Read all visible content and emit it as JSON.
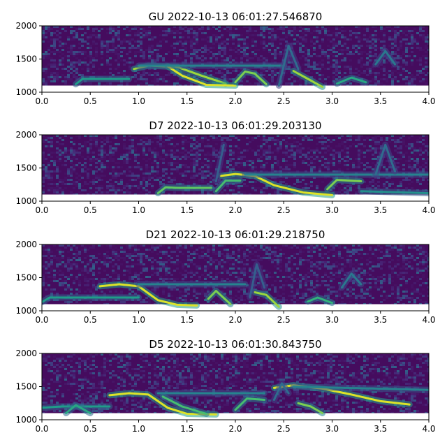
{
  "chart_data": [
    {
      "type": "heatmap",
      "title": "GU 2022-10-13 06:01:27.546870",
      "xlim": [
        0.0,
        4.0
      ],
      "ylim": [
        1000,
        2000
      ],
      "xticks": [
        "0.0",
        "0.5",
        "1.0",
        "1.5",
        "2.0",
        "2.5",
        "3.0",
        "3.5",
        "4.0"
      ],
      "yticks": [
        "1000",
        "1500",
        "2000"
      ],
      "colormap": "viridis",
      "tracks": [
        {
          "x": [
            0.35,
            0.42,
            0.55,
            0.9
          ],
          "y": [
            1120,
            1200,
            1200,
            1200
          ],
          "intensity": 0.55
        },
        {
          "x": [
            0.95,
            1.1,
            1.4,
            1.65,
            1.9
          ],
          "y": [
            1350,
            1400,
            1380,
            1250,
            1130
          ],
          "intensity": 0.85
        },
        {
          "x": [
            1.3,
            1.45,
            1.7,
            2.0
          ],
          "y": [
            1390,
            1250,
            1110,
            1100
          ],
          "intensity": 0.95
        },
        {
          "x": [
            1.0,
            2.5
          ],
          "y": [
            1400,
            1400
          ],
          "intensity": 0.45
        },
        {
          "x": [
            2.0,
            2.1,
            2.2,
            2.32
          ],
          "y": [
            1150,
            1310,
            1280,
            1120
          ],
          "intensity": 0.8
        },
        {
          "x": [
            2.6,
            2.75,
            2.9
          ],
          "y": [
            1320,
            1200,
            1080
          ],
          "intensity": 0.85
        },
        {
          "x": [
            3.05,
            3.2,
            3.35
          ],
          "y": [
            1130,
            1220,
            1150
          ],
          "intensity": 0.6
        },
        {
          "x": [
            3.45,
            3.55,
            3.65
          ],
          "y": [
            1420,
            1620,
            1420
          ],
          "intensity": 0.4
        },
        {
          "x": [
            2.45,
            2.55,
            2.65
          ],
          "y": [
            1100,
            1700,
            1350
          ],
          "intensity": 0.35
        }
      ]
    },
    {
      "type": "heatmap",
      "title": "D7 2022-10-13 06:01:29.203130",
      "xlim": [
        0.0,
        4.0
      ],
      "ylim": [
        1000,
        2000
      ],
      "xticks": [
        "0.0",
        "0.5",
        "1.0",
        "1.5",
        "2.0",
        "2.5",
        "3.0",
        "3.5",
        "4.0"
      ],
      "yticks": [
        "1000",
        "1500",
        "2000"
      ],
      "colormap": "viridis",
      "tracks": [
        {
          "x": [
            1.2,
            1.28,
            1.4,
            1.75
          ],
          "y": [
            1120,
            1210,
            1200,
            1200
          ],
          "intensity": 0.75
        },
        {
          "x": [
            1.8,
            1.9,
            2.05
          ],
          "y": [
            1150,
            1310,
            1310
          ],
          "intensity": 0.7
        },
        {
          "x": [
            1.85,
            2.0,
            2.2,
            2.4,
            2.7,
            3.0
          ],
          "y": [
            1380,
            1410,
            1380,
            1240,
            1130,
            1090
          ],
          "intensity": 0.95
        },
        {
          "x": [
            2.1,
            4.0
          ],
          "y": [
            1400,
            1400
          ],
          "intensity": 0.45
        },
        {
          "x": [
            2.95,
            3.05,
            3.3
          ],
          "y": [
            1180,
            1320,
            1300
          ],
          "intensity": 0.8
        },
        {
          "x": [
            3.3,
            4.0
          ],
          "y": [
            1150,
            1120
          ],
          "intensity": 0.5
        },
        {
          "x": [
            3.45,
            3.55,
            3.65
          ],
          "y": [
            1400,
            1850,
            1450
          ],
          "intensity": 0.35
        },
        {
          "x": [
            1.8,
            1.88
          ],
          "y": [
            1300,
            1850
          ],
          "intensity": 0.3
        }
      ]
    },
    {
      "type": "heatmap",
      "title": "D21 2022-10-13 06:01:29.218750",
      "xlim": [
        0.0,
        4.0
      ],
      "ylim": [
        1000,
        2000
      ],
      "xticks": [
        "0.0",
        "0.5",
        "1.0",
        "1.5",
        "2.0",
        "2.5",
        "3.0",
        "3.5",
        "4.0"
      ],
      "yticks": [
        "1000",
        "1500",
        "2000"
      ],
      "colormap": "viridis",
      "tracks": [
        {
          "x": [
            0.0,
            0.08,
            0.5,
            1.0
          ],
          "y": [
            1130,
            1200,
            1200,
            1200
          ],
          "intensity": 0.55
        },
        {
          "x": [
            0.6,
            0.8,
            1.0,
            1.2,
            1.4,
            1.6
          ],
          "y": [
            1370,
            1400,
            1370,
            1160,
            1090,
            1080
          ],
          "intensity": 0.95
        },
        {
          "x": [
            1.0,
            2.1
          ],
          "y": [
            1400,
            1400
          ],
          "intensity": 0.45
        },
        {
          "x": [
            1.72,
            1.8,
            1.95
          ],
          "y": [
            1180,
            1300,
            1100
          ],
          "intensity": 0.8
        },
        {
          "x": [
            2.2,
            2.32,
            2.45
          ],
          "y": [
            1280,
            1240,
            1060
          ],
          "intensity": 0.85
        },
        {
          "x": [
            2.75,
            2.85,
            3.0
          ],
          "y": [
            1140,
            1200,
            1120
          ],
          "intensity": 0.65
        },
        {
          "x": [
            3.1,
            3.2,
            3.3
          ],
          "y": [
            1350,
            1560,
            1400
          ],
          "intensity": 0.4
        },
        {
          "x": [
            2.15,
            2.22,
            2.3
          ],
          "y": [
            1200,
            1700,
            1350
          ],
          "intensity": 0.3
        }
      ]
    },
    {
      "type": "heatmap",
      "title": "D5 2022-10-13 06:01:30.843750",
      "xlim": [
        0.0,
        4.0
      ],
      "ylim": [
        1000,
        2000
      ],
      "xticks": [
        "0.0",
        "0.5",
        "1.0",
        "1.5",
        "2.0",
        "2.5",
        "3.0",
        "3.5",
        "4.0"
      ],
      "yticks": [
        "1000",
        "1500",
        "2000"
      ],
      "colormap": "viridis",
      "tracks": [
        {
          "x": [
            0.0,
            0.2,
            0.5,
            0.7
          ],
          "y": [
            1180,
            1200,
            1200,
            1200
          ],
          "intensity": 0.55
        },
        {
          "x": [
            0.25,
            0.35,
            0.5
          ],
          "y": [
            1100,
            1220,
            1100
          ],
          "intensity": 0.6
        },
        {
          "x": [
            0.7,
            0.9,
            1.1,
            1.3,
            1.5,
            1.8
          ],
          "y": [
            1370,
            1400,
            1380,
            1180,
            1090,
            1080
          ],
          "intensity": 0.95
        },
        {
          "x": [
            1.2,
            2.3
          ],
          "y": [
            1400,
            1400
          ],
          "intensity": 0.45
        },
        {
          "x": [
            1.25,
            1.45,
            1.7
          ],
          "y": [
            1350,
            1200,
            1090
          ],
          "intensity": 0.7
        },
        {
          "x": [
            2.0,
            2.12,
            2.3
          ],
          "y": [
            1150,
            1320,
            1300
          ],
          "intensity": 0.7
        },
        {
          "x": [
            2.4,
            2.6,
            2.9,
            3.2,
            3.5,
            3.8
          ],
          "y": [
            1480,
            1520,
            1470,
            1380,
            1280,
            1230
          ],
          "intensity": 0.95
        },
        {
          "x": [
            2.6,
            4.0
          ],
          "y": [
            1500,
            1450
          ],
          "intensity": 0.45
        },
        {
          "x": [
            2.65,
            2.78,
            2.9
          ],
          "y": [
            1250,
            1200,
            1100
          ],
          "intensity": 0.8
        },
        {
          "x": [
            2.4,
            2.48,
            2.55
          ],
          "y": [
            1300,
            1550,
            1400
          ],
          "intensity": 0.35
        }
      ]
    }
  ]
}
